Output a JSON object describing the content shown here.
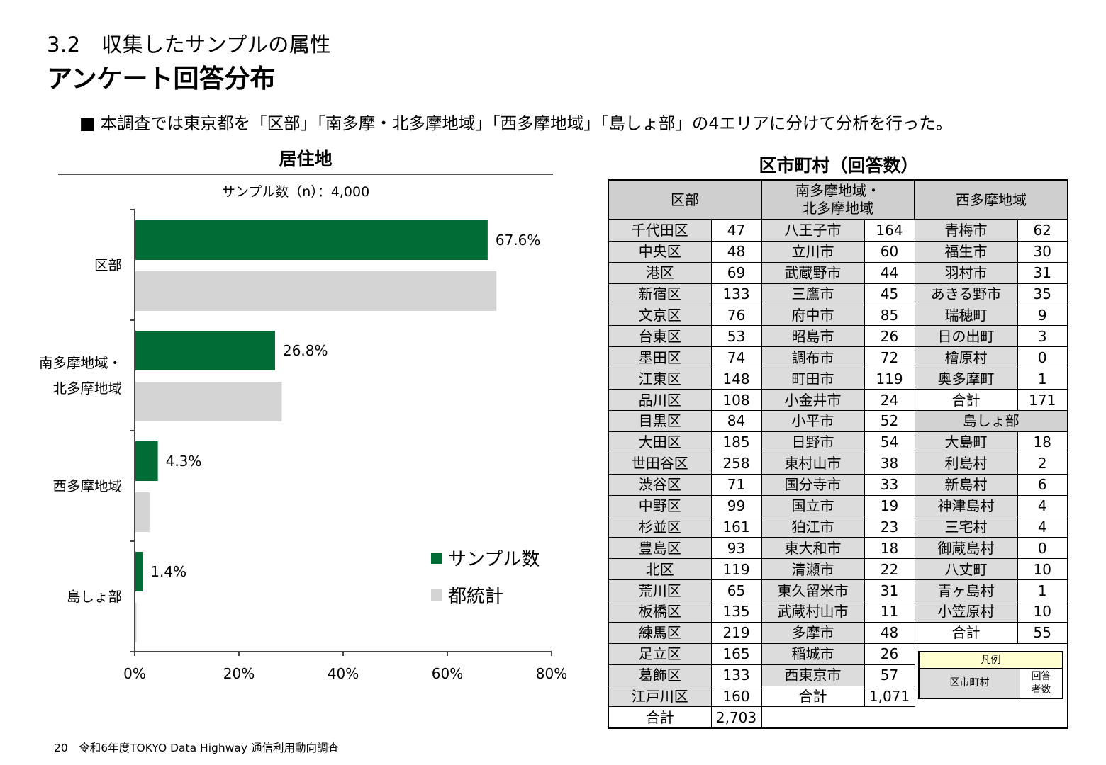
{
  "header": {
    "section_sub": "3.2　収集したサンプルの属性",
    "section_main": "アンケート回答分布",
    "bullet": "■ 本調査では東京都を「区部」「南多摩・北多摩地域」「西多摩地域」「島しょ部」の4エリアに分けて分析を行った。"
  },
  "chart": {
    "title": "居住地",
    "sample": "サンプル数（n）：4,000"
  },
  "chart_data": {
    "type": "bar",
    "orientation": "horizontal",
    "title": "居住地",
    "subtitle": "サンプル数（n）：4,000",
    "categories": [
      "区部",
      "南多摩地域・北多摩地域",
      "西多摩地域",
      "島しょ部"
    ],
    "category_lines": [
      [
        "区部"
      ],
      [
        "南多摩地域・",
        "北多摩地域"
      ],
      [
        "西多摩地域"
      ],
      [
        "島しょ部"
      ]
    ],
    "series": [
      {
        "name": "サンプル数",
        "color": "#006b35",
        "values": [
          67.6,
          26.8,
          4.3,
          1.4
        ],
        "labels": [
          "67.6%",
          "26.8%",
          "4.3%",
          "1.4%"
        ]
      },
      {
        "name": "都統計",
        "color": "#d4d4d4",
        "values": [
          69.3,
          28.1,
          2.7,
          0.2
        ]
      }
    ],
    "xlim": [
      0,
      80
    ],
    "xticks": [
      "0%",
      "20%",
      "40%",
      "60%",
      "80%"
    ],
    "legend": "bottom-right",
    "grid": false
  },
  "table": {
    "title": "区市町村（回答数）",
    "headers": [
      "区部",
      "南多摩地域・\n北多摩地域",
      "西多摩地域"
    ],
    "ku": [
      [
        "千代田区",
        "47"
      ],
      [
        "中央区",
        "48"
      ],
      [
        "港区",
        "69"
      ],
      [
        "新宿区",
        "133"
      ],
      [
        "文京区",
        "76"
      ],
      [
        "台東区",
        "53"
      ],
      [
        "墨田区",
        "74"
      ],
      [
        "江東区",
        "148"
      ],
      [
        "品川区",
        "108"
      ],
      [
        "目黒区",
        "84"
      ],
      [
        "大田区",
        "185"
      ],
      [
        "世田谷区",
        "258"
      ],
      [
        "渋谷区",
        "71"
      ],
      [
        "中野区",
        "99"
      ],
      [
        "杉並区",
        "161"
      ],
      [
        "豊島区",
        "93"
      ],
      [
        "北区",
        "119"
      ],
      [
        "荒川区",
        "65"
      ],
      [
        "板橋区",
        "135"
      ],
      [
        "練馬区",
        "219"
      ],
      [
        "足立区",
        "165"
      ],
      [
        "葛飾区",
        "133"
      ],
      [
        "江戸川区",
        "160"
      ]
    ],
    "ku_total": [
      "合計",
      "2,703"
    ],
    "tama": [
      [
        "八王子市",
        "164"
      ],
      [
        "立川市",
        "60"
      ],
      [
        "武蔵野市",
        "44"
      ],
      [
        "三鷹市",
        "45"
      ],
      [
        "府中市",
        "85"
      ],
      [
        "昭島市",
        "26"
      ],
      [
        "調布市",
        "72"
      ],
      [
        "町田市",
        "119"
      ],
      [
        "小金井市",
        "24"
      ],
      [
        "小平市",
        "52"
      ],
      [
        "日野市",
        "54"
      ],
      [
        "東村山市",
        "38"
      ],
      [
        "国分寺市",
        "33"
      ],
      [
        "国立市",
        "19"
      ],
      [
        "狛江市",
        "23"
      ],
      [
        "東大和市",
        "18"
      ],
      [
        "清瀬市",
        "22"
      ],
      [
        "東久留米市",
        "31"
      ],
      [
        "武蔵村山市",
        "11"
      ],
      [
        "多摩市",
        "48"
      ],
      [
        "稲城市",
        "26"
      ],
      [
        "西東京市",
        "57"
      ]
    ],
    "tama_total": [
      "合計",
      "1,071"
    ],
    "nishi": [
      [
        "青梅市",
        "62"
      ],
      [
        "福生市",
        "30"
      ],
      [
        "羽村市",
        "31"
      ],
      [
        "あきる野市",
        "35"
      ],
      [
        "瑞穂町",
        "9"
      ],
      [
        "日の出町",
        "3"
      ],
      [
        "檜原村",
        "0"
      ],
      [
        "奥多摩町",
        "1"
      ]
    ],
    "nishi_total": [
      "合計",
      "171"
    ],
    "shima_header": "島しょ部",
    "shima": [
      [
        "大島町",
        "18"
      ],
      [
        "利島村",
        "2"
      ],
      [
        "新島村",
        "6"
      ],
      [
        "神津島村",
        "4"
      ],
      [
        "三宅村",
        "4"
      ],
      [
        "御蔵島村",
        "0"
      ],
      [
        "八丈町",
        "10"
      ],
      [
        "青ヶ島村",
        "1"
      ],
      [
        "小笠原村",
        "10"
      ]
    ],
    "shima_total": [
      "合計",
      "55"
    ],
    "legend": {
      "title": "凡例",
      "name": "区市町村",
      "count": "回答者数"
    }
  },
  "footer": "20　令和6年度TOKYO Data Highway 通信利用動向調査"
}
